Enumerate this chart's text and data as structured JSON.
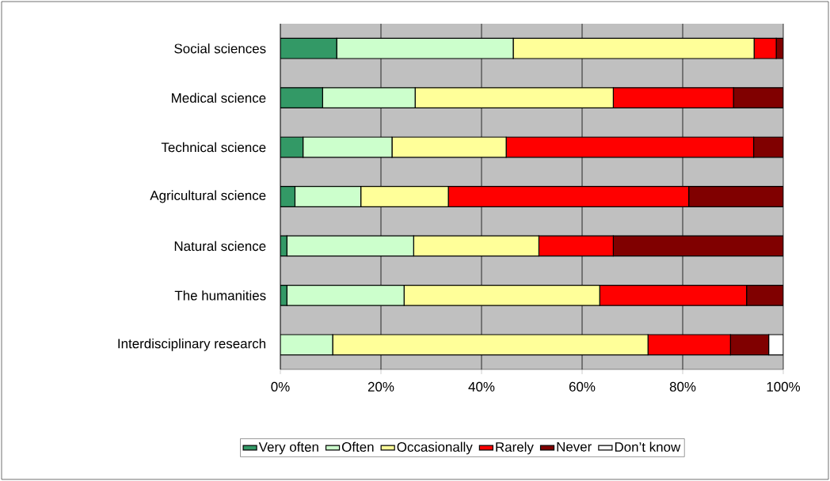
{
  "chart_data": {
    "type": "bar",
    "orientation": "horizontal",
    "stacked": true,
    "categories": [
      "Social sciences",
      "Medical science",
      "Technical science",
      "Agricultural science",
      "Natural science",
      "The humanities",
      "Interdisciplinary research"
    ],
    "series": [
      {
        "name": "Very often",
        "color": "#339966",
        "values": [
          11.2,
          8.4,
          4.5,
          2.9,
          1.3,
          1.3,
          0
        ]
      },
      {
        "name": "Often",
        "color": "#ccffcc",
        "values": [
          35.1,
          18.4,
          17.7,
          13.1,
          25.2,
          23.3,
          10.4
        ]
      },
      {
        "name": "Occasionally",
        "color": "#ffff99",
        "values": [
          47.9,
          39.4,
          22.7,
          17.4,
          24.9,
          38.9,
          62.7
        ]
      },
      {
        "name": "Rarely",
        "color": "#ff0000",
        "values": [
          4.4,
          23.9,
          49.2,
          47.8,
          14.8,
          29.2,
          16.4
        ]
      },
      {
        "name": "Never",
        "color": "#800000",
        "values": [
          1.4,
          9.9,
          5.9,
          18.8,
          33.8,
          7.3,
          7.6
        ]
      },
      {
        "name": "Don’t know",
        "color": "#ffffff",
        "values": [
          0,
          0,
          0,
          0,
          0,
          0,
          2.9
        ]
      }
    ],
    "xlim": [
      0,
      100
    ],
    "xticks": [
      {
        "value": 0,
        "label": "0%"
      },
      {
        "value": 20,
        "label": "20%"
      },
      {
        "value": 40,
        "label": "40%"
      },
      {
        "value": 60,
        "label": "60%"
      },
      {
        "value": 80,
        "label": "80%"
      },
      {
        "value": 100,
        "label": "100%"
      }
    ],
    "grid": "x",
    "legend": "bottom"
  }
}
